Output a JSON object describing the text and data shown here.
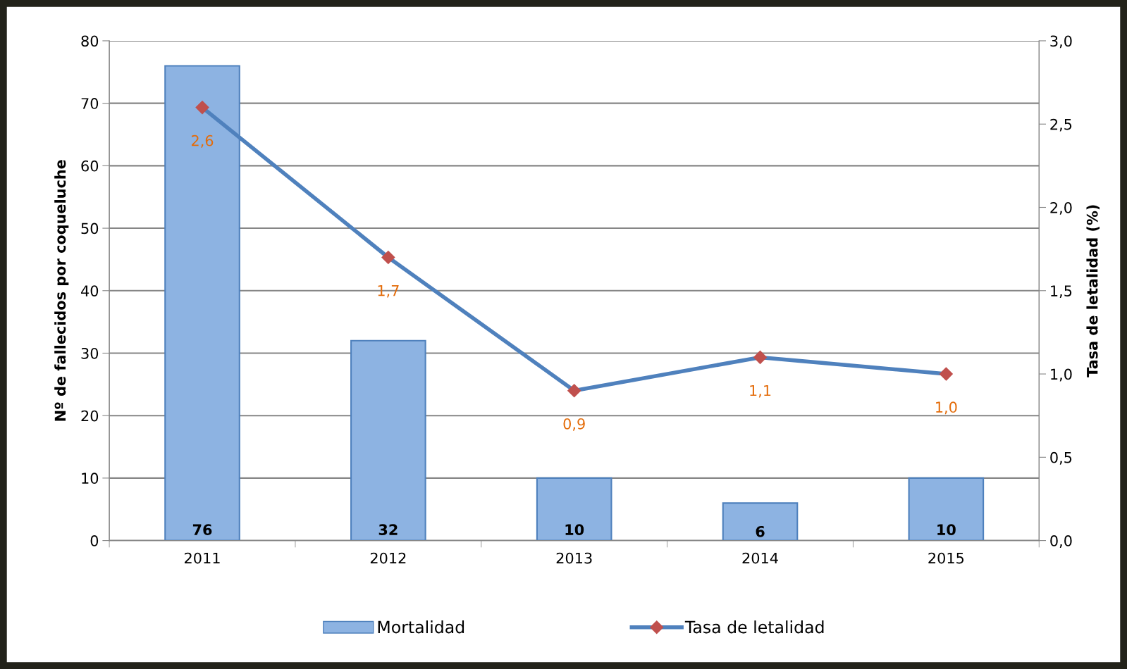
{
  "chart_data": {
    "type": "bar",
    "categories": [
      "2011",
      "2012",
      "2013",
      "2014",
      "2015"
    ],
    "series": [
      {
        "name": "Mortalidad",
        "color": "#8db3e2",
        "values": [
          76,
          32,
          10,
          6,
          10
        ],
        "value_labels": [
          "76",
          "32",
          "10",
          "6",
          "10"
        ]
      },
      {
        "name": "Tasa de letalidad",
        "type": "line",
        "axis": "y2",
        "color": "#4f81bd",
        "marker": "diamond",
        "values": [
          2.6,
          1.7,
          0.9,
          1.1,
          1.0
        ],
        "value_labels": [
          "2,6",
          "1,7",
          "0,9",
          "1,1",
          "1,0"
        ]
      }
    ],
    "ylabel": "Nº de fallecidos por coqueluche",
    "y2label": "Tasa de letalidad (%)",
    "ylim": [
      0,
      80
    ],
    "yticks": [
      0,
      10,
      20,
      30,
      40,
      50,
      60,
      70,
      80
    ],
    "y2lim": [
      0,
      3.0
    ],
    "y2ticks": [
      {
        "value": 0,
        "label": "0,0"
      },
      {
        "value": 0.5,
        "label": "0,5"
      },
      {
        "value": 1.0,
        "label": "1,0"
      },
      {
        "value": 1.5,
        "label": "1,5"
      },
      {
        "value": 2.0,
        "label": "2,0"
      },
      {
        "value": 2.5,
        "label": "2,5"
      },
      {
        "value": 3.0,
        "label": "3,0"
      }
    ],
    "grid": "y",
    "legend": "bottom"
  }
}
